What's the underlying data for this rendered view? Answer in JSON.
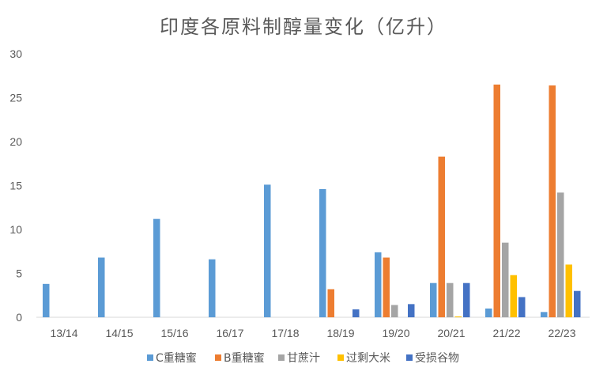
{
  "chart_data": {
    "type": "bar",
    "title": "印度各原料制醇量变化（亿升）",
    "xlabel": "",
    "ylabel": "",
    "ylim": [
      0,
      30
    ],
    "yticks": [
      0,
      5,
      10,
      15,
      20,
      25,
      30
    ],
    "grid": false,
    "legend_position": "bottom",
    "categories": [
      "13/14",
      "14/15",
      "15/16",
      "16/17",
      "17/18",
      "18/19",
      "19/20",
      "20/21",
      "21/22",
      "22/23"
    ],
    "series": [
      {
        "name": "C重糖蜜",
        "color": "#5B9BD5",
        "values": [
          3.8,
          6.8,
          11.2,
          6.6,
          15.1,
          14.6,
          7.4,
          3.9,
          1.0,
          0.6
        ]
      },
      {
        "name": "B重糖蜜",
        "color": "#ED7D31",
        "values": [
          0,
          0,
          0,
          0,
          0,
          3.2,
          6.8,
          18.3,
          26.5,
          26.4
        ]
      },
      {
        "name": "甘蔗汁",
        "color": "#A5A5A5",
        "values": [
          0,
          0,
          0,
          0,
          0,
          0,
          1.4,
          3.9,
          8.5,
          14.2
        ]
      },
      {
        "name": "过剩大米",
        "color": "#FFC000",
        "values": [
          0,
          0,
          0,
          0,
          0,
          0,
          0,
          0.1,
          4.8,
          6.0
        ]
      },
      {
        "name": "受损谷物",
        "color": "#4472C4",
        "values": [
          0,
          0,
          0,
          0,
          0,
          0.9,
          1.5,
          3.9,
          2.3,
          3.0
        ]
      }
    ]
  }
}
